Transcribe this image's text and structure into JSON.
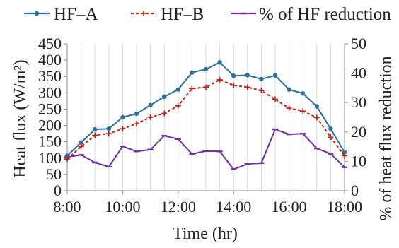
{
  "chart_data": {
    "type": "line",
    "x": [
      "8:00",
      "8:30",
      "9:00",
      "9:30",
      "10:00",
      "10:30",
      "11:00",
      "11:30",
      "12:00",
      "12:30",
      "13:00",
      "13:30",
      "14:00",
      "14:30",
      "15:00",
      "15:30",
      "16:00",
      "16:30",
      "17:00",
      "17:30",
      "18:00"
    ],
    "x_tick_labels": [
      "8:00",
      "10:00",
      "12:00",
      "14:00",
      "16:00",
      "18:00"
    ],
    "xlabel": "Time (hr)",
    "ylabel_left": "Heat flux (W/m²)",
    "ylabel_right": "% of heat flux reduction",
    "ylim_left": [
      0,
      450
    ],
    "yticks_left": [
      "0",
      "50",
      "100",
      "150",
      "200",
      "250",
      "300",
      "350",
      "400",
      "450"
    ],
    "ylim_right": [
      0,
      50
    ],
    "yticks_right": [
      "0",
      "10",
      "20",
      "30",
      "40",
      "50"
    ],
    "grid": "vertical",
    "legend_position": "top",
    "series": [
      {
        "name": "HF–A",
        "axis": "left",
        "color": "#2e6f9e",
        "marker": "circle",
        "line": "solid",
        "values": [
          107,
          148,
          188,
          190,
          225,
          236,
          262,
          288,
          310,
          362,
          372,
          393,
          352,
          354,
          342,
          353,
          310,
          298,
          258,
          190,
          118
        ]
      },
      {
        "name": "HF–B",
        "axis": "left",
        "color": "#c0201b",
        "marker": "plus",
        "line": "dashed",
        "values": [
          97,
          135,
          170,
          175,
          190,
          205,
          225,
          237,
          260,
          313,
          317,
          340,
          323,
          317,
          307,
          280,
          253,
          244,
          224,
          164,
          107
        ]
      },
      {
        "name": "% of HF reduction",
        "axis": "right",
        "color": "#7030a0",
        "marker": "dash",
        "line": "solid",
        "values": [
          11.5,
          12.2,
          9.6,
          8.2,
          15.1,
          13.4,
          14.0,
          18.7,
          17.6,
          12.5,
          13.5,
          13.4,
          7.3,
          9.1,
          9.4,
          20.9,
          19.2,
          19.4,
          14.4,
          12.6,
          8.0
        ]
      }
    ]
  }
}
